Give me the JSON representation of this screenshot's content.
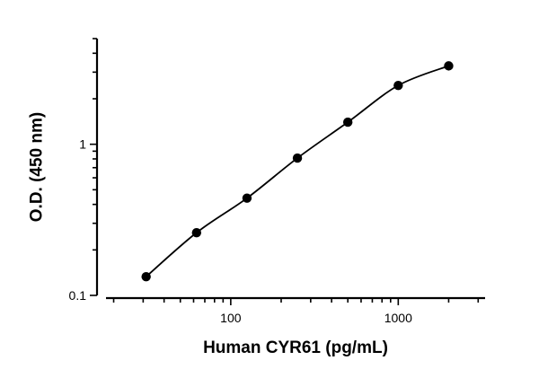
{
  "chart_data": {
    "type": "scatter",
    "title": "",
    "xlabel": "Human CYR61 (pg/mL)",
    "ylabel": "O.D. (450 nm)",
    "x_scale": "log",
    "y_scale": "log",
    "xlim": [
      18,
      3300
    ],
    "ylim": [
      0.1,
      5
    ],
    "x_tick_labels": [
      "100",
      "1000"
    ],
    "y_tick_labels": [
      "0.1",
      "1"
    ],
    "grid": false,
    "legend": "none",
    "series": [
      {
        "x": [
          31.25,
          62.5,
          125,
          250,
          500,
          1000,
          2000
        ],
        "y": [
          0.133,
          0.26,
          0.44,
          0.81,
          1.4,
          2.45,
          3.3
        ]
      }
    ],
    "fit": "smooth curve through points"
  }
}
